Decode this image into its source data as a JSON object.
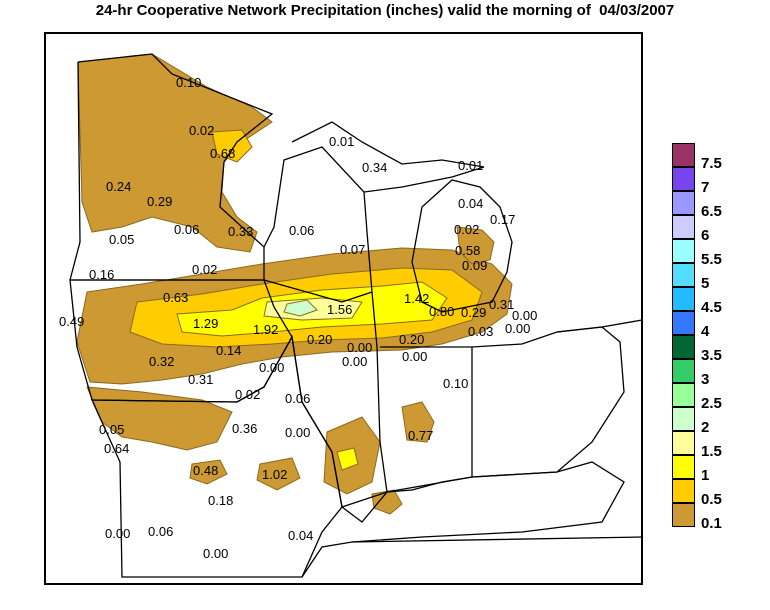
{
  "title": "24-hr Cooperative Network Precipitation (inches) valid the morning of  04/03/2007",
  "legend": {
    "items": [
      {
        "label": "7.5",
        "color": "#993366"
      },
      {
        "label": "7",
        "color": "#7744ee"
      },
      {
        "label": "6.5",
        "color": "#9999ff"
      },
      {
        "label": "6",
        "color": "#ccccff"
      },
      {
        "label": "5.5",
        "color": "#99ffff"
      },
      {
        "label": "5",
        "color": "#55ddff"
      },
      {
        "label": "4.5",
        "color": "#22bbff"
      },
      {
        "label": "4",
        "color": "#3377ff"
      },
      {
        "label": "3.5",
        "color": "#006633"
      },
      {
        "label": "3",
        "color": "#33cc66"
      },
      {
        "label": "2.5",
        "color": "#99ff99"
      },
      {
        "label": "2",
        "color": "#ccffcc"
      },
      {
        "label": "1.5",
        "color": "#ffff99"
      },
      {
        "label": "1",
        "color": "#ffff00"
      },
      {
        "label": "0.5",
        "color": "#ffcc00"
      },
      {
        "label": "0.1",
        "color": "#cc9933"
      }
    ]
  },
  "stations": [
    {
      "value": "0.10"
    },
    {
      "value": "0.02"
    },
    {
      "value": "0.68"
    },
    {
      "value": "0.24"
    },
    {
      "value": "0.29"
    },
    {
      "value": "0.06"
    },
    {
      "value": "0.33"
    },
    {
      "value": "0.06"
    },
    {
      "value": "0.05"
    },
    {
      "value": "0.01"
    },
    {
      "value": "0.34"
    },
    {
      "value": "0.01"
    },
    {
      "value": "0.04"
    },
    {
      "value": "0.02"
    },
    {
      "value": "0.17"
    },
    {
      "value": "0.07"
    },
    {
      "value": "0.58"
    },
    {
      "value": "0.09"
    },
    {
      "value": "0.16"
    },
    {
      "value": "0.02"
    },
    {
      "value": "0.63"
    },
    {
      "value": "0.49"
    },
    {
      "value": "1.29"
    },
    {
      "value": "1.92"
    },
    {
      "value": "1.56"
    },
    {
      "value": "1.42"
    },
    {
      "value": "0.80"
    },
    {
      "value": "0.29"
    },
    {
      "value": "0.31"
    },
    {
      "value": "0.00"
    },
    {
      "value": "0.00"
    },
    {
      "value": "0.03"
    },
    {
      "value": "0.20"
    },
    {
      "value": "0.20"
    },
    {
      "value": "0.00"
    },
    {
      "value": "0.00"
    },
    {
      "value": "0.00"
    },
    {
      "value": "0.14"
    },
    {
      "value": "0.32"
    },
    {
      "value": "0.00"
    },
    {
      "value": "0.31"
    },
    {
      "value": "0.10"
    },
    {
      "value": "0.02"
    },
    {
      "value": "0.06"
    },
    {
      "value": "0.05"
    },
    {
      "value": "0.36"
    },
    {
      "value": "0.00"
    },
    {
      "value": "0.64"
    },
    {
      "value": "0.77"
    },
    {
      "value": "0.48"
    },
    {
      "value": "1.02"
    },
    {
      "value": "0.18"
    },
    {
      "value": "0.00"
    },
    {
      "value": "0.06"
    },
    {
      "value": "0.04"
    },
    {
      "value": "0.00"
    }
  ]
}
